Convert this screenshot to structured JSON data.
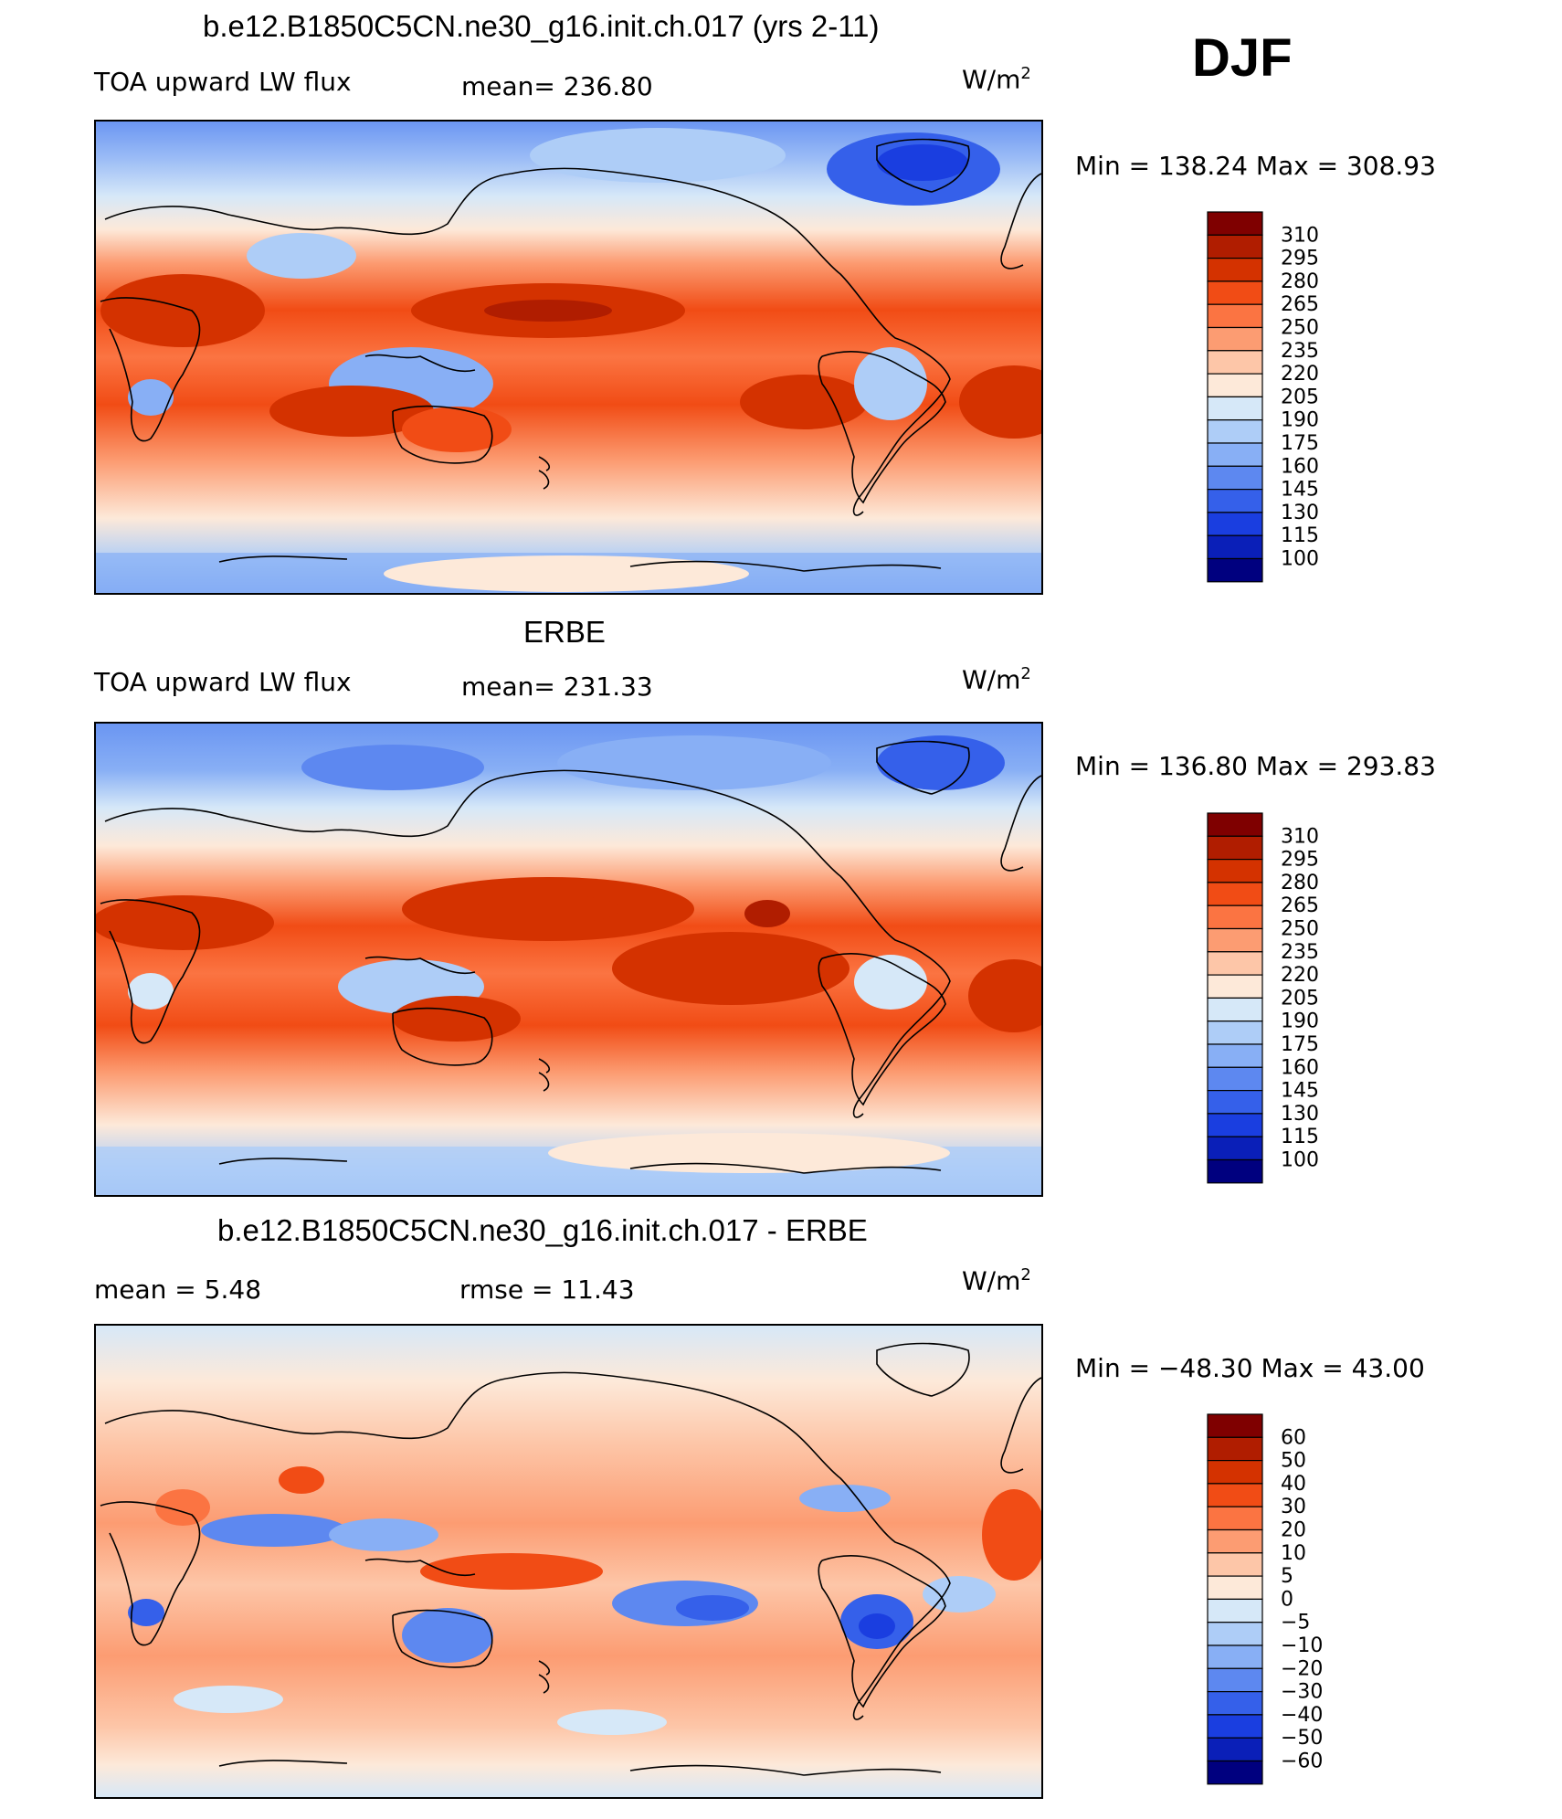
{
  "season_label": "DJF",
  "panels": [
    {
      "title": "b.e12.B1850C5CN.ne30_g16.init.ch.017 (yrs 2-11)",
      "left_text": "TOA upward LW flux",
      "mid_text": "mean= 236.80",
      "units": "W/m",
      "units_sup": "2",
      "minmax_text": "Min  =  138.24  Max  =  308.93"
    },
    {
      "title": "ERBE",
      "left_text": "TOA upward LW flux",
      "mid_text": "mean= 231.33",
      "units": "W/m",
      "units_sup": "2",
      "minmax_text": "Min  =  136.80  Max  =  293.83"
    },
    {
      "title": "b.e12.B1850C5CN.ne30_g16.init.ch.017 - ERBE",
      "left_text": "mean =      5.48",
      "mid_text": "rmse =     11.43",
      "units": "W/m",
      "units_sup": "2",
      "minmax_text": "Min  =  −48.30  Max  =     43.00"
    }
  ],
  "colorbars": [
    {
      "labels": [
        "310",
        "295",
        "280",
        "265",
        "250",
        "235",
        "220",
        "205",
        "190",
        "175",
        "160",
        "145",
        "130",
        "115",
        "100"
      ],
      "colors": [
        "#7f0000",
        "#b01d00",
        "#d43200",
        "#f14c15",
        "#fb7442",
        "#fc9c72",
        "#fdc6a8",
        "#fde9d9",
        "#d6e8f8",
        "#aecdf7",
        "#88aff5",
        "#5d88f0",
        "#3560ea",
        "#1a3ee0",
        "#0a1fb8",
        "#00007f"
      ]
    },
    {
      "labels": [
        "310",
        "295",
        "280",
        "265",
        "250",
        "235",
        "220",
        "205",
        "190",
        "175",
        "160",
        "145",
        "130",
        "115",
        "100"
      ],
      "colors": [
        "#7f0000",
        "#b01d00",
        "#d43200",
        "#f14c15",
        "#fb7442",
        "#fc9c72",
        "#fdc6a8",
        "#fde9d9",
        "#d6e8f8",
        "#aecdf7",
        "#88aff5",
        "#5d88f0",
        "#3560ea",
        "#1a3ee0",
        "#0a1fb8",
        "#00007f"
      ]
    },
    {
      "labels": [
        "60",
        "50",
        "40",
        "30",
        "20",
        "10",
        "5",
        "0",
        "−5",
        "−10",
        "−20",
        "−30",
        "−40",
        "−50",
        "−60"
      ],
      "colors": [
        "#7f0000",
        "#b01d00",
        "#d43200",
        "#f14c15",
        "#fb7442",
        "#fc9c72",
        "#fdc6a8",
        "#fde9d9",
        "#d6e8f8",
        "#aecdf7",
        "#88aff5",
        "#5d88f0",
        "#3560ea",
        "#1a3ee0",
        "#0a1fb8",
        "#00007f"
      ]
    }
  ],
  "chart_data": [
    {
      "type": "heatmap",
      "title": "b.e12.B1850C5CN.ne30_g16.init.ch.017 (yrs 2-11)",
      "variable": "TOA upward LW flux",
      "units": "W/m2",
      "mean": 236.8,
      "min": 138.24,
      "max": 308.93,
      "levels": [
        100,
        115,
        130,
        145,
        160,
        175,
        190,
        205,
        220,
        235,
        250,
        265,
        280,
        295,
        310
      ]
    },
    {
      "type": "heatmap",
      "title": "ERBE",
      "variable": "TOA upward LW flux",
      "units": "W/m2",
      "mean": 231.33,
      "min": 136.8,
      "max": 293.83,
      "levels": [
        100,
        115,
        130,
        145,
        160,
        175,
        190,
        205,
        220,
        235,
        250,
        265,
        280,
        295,
        310
      ]
    },
    {
      "type": "heatmap",
      "title": "b.e12.B1850C5CN.ne30_g16.init.ch.017 - ERBE",
      "units": "W/m2",
      "mean": 5.48,
      "rmse": 11.43,
      "min": -48.3,
      "max": 43.0,
      "levels": [
        -60,
        -50,
        -40,
        -30,
        -20,
        -10,
        -5,
        0,
        5,
        10,
        20,
        30,
        40,
        50,
        60
      ]
    }
  ]
}
